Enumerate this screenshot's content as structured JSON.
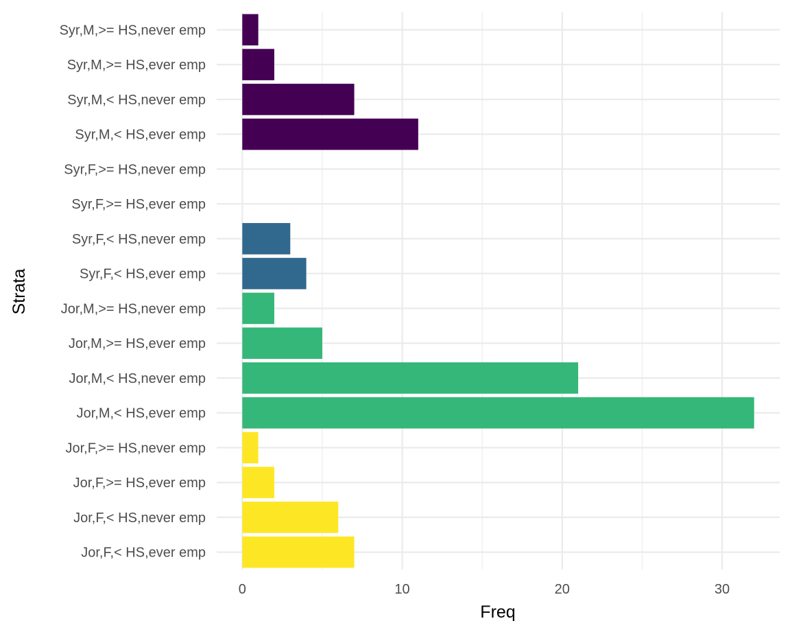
{
  "chart_data": {
    "type": "bar",
    "orientation": "horizontal",
    "xlabel": "Freq",
    "ylabel": "Strata",
    "xlim": [
      -1.6,
      33.6
    ],
    "x_ticks": [
      0,
      10,
      20,
      30
    ],
    "x_minor_ticks": [
      5,
      15,
      25
    ],
    "grid": true,
    "legend": "none",
    "categories": [
      "Syr,M,>= HS,never emp",
      "Syr,M,>= HS,ever emp",
      "Syr,M,< HS,never emp",
      "Syr,M,< HS,ever emp",
      "Syr,F,>= HS,never emp",
      "Syr,F,>= HS,ever emp",
      "Syr,F,< HS,never emp",
      "Syr,F,< HS,ever emp",
      "Jor,M,>= HS,never emp",
      "Jor,M,>= HS,ever emp",
      "Jor,M,< HS,never emp",
      "Jor,M,< HS,ever emp",
      "Jor,F,>= HS,never emp",
      "Jor,F,>= HS,ever emp",
      "Jor,F,< HS,never emp",
      "Jor,F,< HS,ever emp"
    ],
    "values": [
      1,
      2,
      7,
      11,
      0,
      0,
      3,
      4,
      2,
      5,
      21,
      32,
      1,
      2,
      6,
      7
    ],
    "bar_colors": [
      "#440154",
      "#440154",
      "#440154",
      "#440154",
      "#31688e",
      "#31688e",
      "#31688e",
      "#31688e",
      "#35b779",
      "#35b779",
      "#35b779",
      "#35b779",
      "#fde725",
      "#fde725",
      "#fde725",
      "#fde725"
    ]
  }
}
